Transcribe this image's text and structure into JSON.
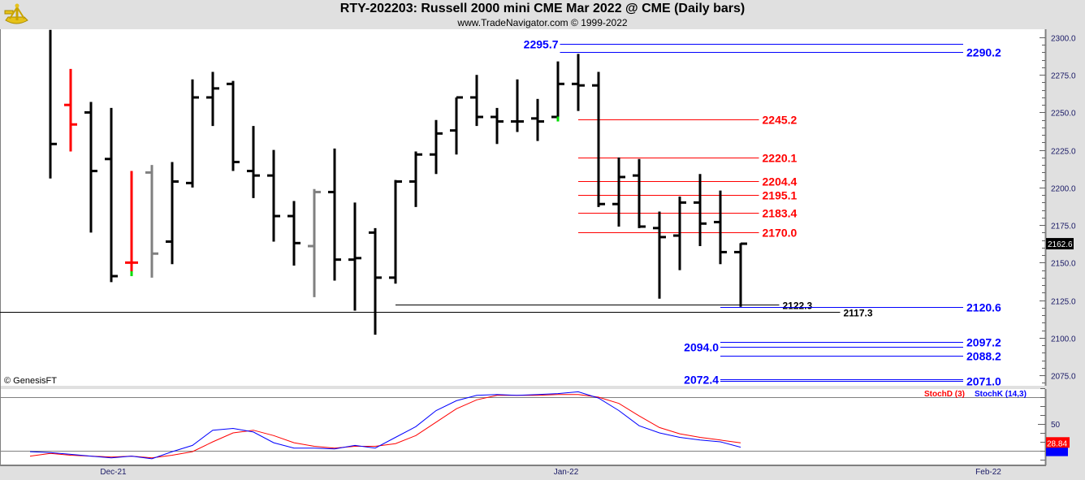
{
  "header": {
    "title": "RTY-202203:  Russell 2000 mini CME Mar 2022 @ CME  (Daily bars)",
    "subtitle": "www.TradeNavigator.com © 1999-2022"
  },
  "watermark": "© GenesisFT",
  "chart_data": {
    "type": "ohlc",
    "symbol": "RTY-202203",
    "price_axis": {
      "min": 2068,
      "max": 2305,
      "ticks": [
        2300,
        2275,
        2250,
        2225,
        2200,
        2175,
        2150,
        2125,
        2100,
        2075
      ],
      "last_price_label": "2162.6"
    },
    "time_axis": [
      {
        "label": "Dec-21",
        "bar": 3.1
      },
      {
        "label": "Jan-22",
        "bar": 25.4
      },
      {
        "label": "Feb-22",
        "bar": 46.2
      }
    ],
    "bars": [
      [
        null,
        2305,
        2206,
        2229
      ],
      [
        2255,
        2279,
        2224,
        2242
      ],
      [
        2250,
        2257,
        2170,
        2211
      ],
      [
        2219,
        2253,
        2137,
        2141
      ],
      [
        2150,
        2211,
        2141,
        2150
      ],
      [
        2210,
        2215,
        2140,
        2156
      ],
      [
        2164,
        2217,
        2149,
        2204
      ],
      [
        2203,
        2272,
        2200,
        2260
      ],
      [
        2260,
        2277,
        2241,
        2266
      ],
      [
        2269,
        2271,
        2211,
        2217
      ],
      [
        2211,
        2241,
        2193,
        2208
      ],
      [
        2208,
        2225,
        2164,
        2181
      ],
      [
        2181,
        2191,
        2148,
        2163
      ],
      [
        2161,
        2199,
        2127,
        2197
      ],
      [
        2197,
        2226,
        2138,
        2152
      ],
      [
        2152,
        2190,
        2118,
        2153
      ],
      [
        2170,
        2173,
        2102,
        2140
      ],
      [
        2140,
        2205,
        2136,
        2204
      ],
      [
        2204,
        2224,
        2187,
        2222
      ],
      [
        2222,
        2245,
        2209,
        2236
      ],
      [
        2238,
        2260,
        2222,
        2260
      ],
      [
        2260,
        2275,
        2241,
        2247
      ],
      [
        2247,
        2253,
        2229,
        2244
      ],
      [
        2244,
        2272,
        2237,
        2244
      ],
      [
        2246,
        2259,
        2231,
        2244
      ],
      [
        2247,
        2284,
        2244,
        2269
      ],
      [
        2269,
        2289,
        2251,
        2268
      ],
      [
        2268,
        2277,
        2187,
        2189
      ],
      [
        2189,
        2220,
        2174,
        2207
      ],
      [
        2208,
        2219,
        2173,
        2174
      ],
      [
        2173,
        2184,
        2126,
        2167
      ],
      [
        2168,
        2194,
        2145,
        2190
      ],
      [
        2190,
        2209,
        2161,
        2176
      ],
      [
        2177,
        2198,
        2149,
        2157
      ],
      [
        2157,
        2163,
        2120.6,
        2162.6
      ]
    ],
    "bar_colors": {
      "default": "#000000",
      "1": "#ff0000",
      "4": "#ff0000",
      "5": "#808080",
      "13": "#808080"
    },
    "markers": [
      {
        "bar": 4,
        "price": 2141,
        "color": "#00dd00"
      },
      {
        "bar": 25,
        "price": 2244,
        "color": "#00dd00"
      }
    ],
    "levels": [
      {
        "price": 2295.7,
        "label": "2295.7",
        "color": "#0000ff",
        "side": "left",
        "start_bar": 25.1,
        "end_bar": 44.96
      },
      {
        "price": 2290.2,
        "label": "2290.2",
        "color": "#0000ff",
        "side": "right",
        "start_bar": 25.1,
        "end_bar": 44.96
      },
      {
        "price": 2245.2,
        "label": "2245.2",
        "color": "#ff0000",
        "side": "right",
        "start_bar": 26,
        "end_bar": 34.9
      },
      {
        "price": 2220.1,
        "label": "2220.1",
        "color": "#ff0000",
        "side": "right",
        "start_bar": 26,
        "end_bar": 34.9
      },
      {
        "price": 2204.4,
        "label": "2204.4",
        "color": "#ff0000",
        "side": "right",
        "start_bar": 26,
        "end_bar": 34.9
      },
      {
        "price": 2195.1,
        "label": "2195.1",
        "color": "#ff0000",
        "side": "right",
        "start_bar": 26,
        "end_bar": 34.9
      },
      {
        "price": 2183.4,
        "label": "2183.4",
        "color": "#ff0000",
        "side": "right",
        "start_bar": 26,
        "end_bar": 34.9
      },
      {
        "price": 2170.0,
        "label": "2170.0",
        "color": "#ff0000",
        "side": "right",
        "start_bar": 26,
        "end_bar": 34.9
      },
      {
        "price": 2122.3,
        "label": "2122.3",
        "color": "#000000",
        "side": "right",
        "start_bar": 17,
        "end_bar": 35.9
      },
      {
        "price": 2117.3,
        "label": "2117.3",
        "color": "#000000",
        "side": "right",
        "start_bar": -2.5,
        "end_bar": 38.9
      },
      {
        "price": 2120.6,
        "label": "2120.6",
        "color": "#0000ff",
        "side": "right",
        "start_bar": 33,
        "end_bar": 44.96
      },
      {
        "price": 2097.2,
        "label": "2097.2",
        "color": "#0000ff",
        "side": "right",
        "start_bar": 33,
        "end_bar": 44.96
      },
      {
        "price": 2094.0,
        "label": "2094.0",
        "color": "#0000ff",
        "side": "left",
        "start_bar": 33,
        "end_bar": 44.96
      },
      {
        "price": 2088.2,
        "label": "2088.2",
        "color": "#0000ff",
        "side": "right",
        "start_bar": 33,
        "end_bar": 44.96
      },
      {
        "price": 2072.4,
        "label": "2072.4",
        "color": "#0000ff",
        "side": "left",
        "start_bar": 33,
        "end_bar": 44.96
      },
      {
        "price": 2071.0,
        "label": "2071.0",
        "color": "#0000ff",
        "side": "right",
        "start_bar": 33,
        "end_bar": 44.96
      }
    ],
    "stochastic": {
      "range": [
        4,
        90
      ],
      "ticks": [
        50
      ],
      "ref_lines": [
        80,
        20
      ],
      "series": [
        {
          "name": "StochD (3)",
          "color": "#ff0000",
          "last_label": "28.84",
          "values": [
            17,
            15,
            14,
            13,
            14,
            12,
            15,
            19,
            30,
            40,
            43,
            37,
            29,
            25,
            23,
            25,
            25,
            28,
            37,
            52,
            67,
            77,
            82,
            82,
            82,
            83,
            83,
            80,
            73,
            59,
            46,
            39,
            35,
            32,
            28.84
          ]
        },
        {
          "name": "StochK (14,3)",
          "color": "#0000ff",
          "values": [
            18,
            16,
            14,
            12,
            14,
            11,
            19,
            26,
            43,
            45,
            41,
            29,
            23,
            23,
            22,
            26,
            23,
            35,
            47,
            65,
            76,
            82,
            83,
            82,
            83,
            84,
            86,
            79,
            65,
            48,
            40,
            35,
            32,
            30,
            24
          ]
        }
      ]
    }
  }
}
